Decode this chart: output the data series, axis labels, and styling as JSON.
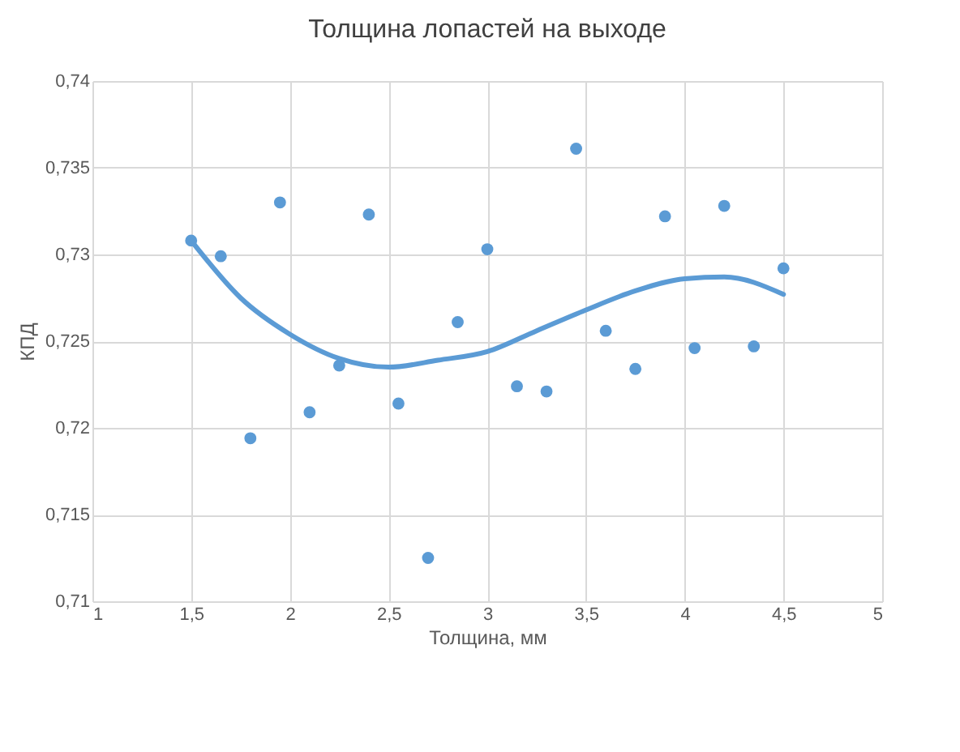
{
  "chart_data": {
    "type": "scatter",
    "title": "Толщина лопастей на выходе",
    "xlabel": "Толщина, мм",
    "ylabel": "КПД",
    "xlim": [
      1,
      5
    ],
    "ylim": [
      0.71,
      0.74
    ],
    "xticks": [
      1,
      {
        "value": 1.5,
        "label": "1,5"
      },
      2,
      {
        "value": 2.5,
        "label": "2,5"
      },
      3,
      {
        "value": 3.5,
        "label": "3,5"
      },
      4,
      {
        "value": 4.5,
        "label": "4,5"
      },
      5
    ],
    "yticks": [
      {
        "value": 0.71,
        "label": "0,71"
      },
      {
        "value": 0.715,
        "label": "0,715"
      },
      {
        "value": 0.72,
        "label": "0,72"
      },
      {
        "value": 0.725,
        "label": "0,725"
      },
      {
        "value": 0.73,
        "label": "0,73"
      },
      {
        "value": 0.735,
        "label": "0,735"
      },
      {
        "value": 0.74,
        "label": "0,74"
      }
    ],
    "grid": true,
    "series": [
      {
        "marker": "circle",
        "color": "#5b9bd5",
        "x": [
          1.5,
          1.65,
          1.8,
          1.95,
          2.1,
          2.25,
          2.4,
          2.55,
          2.7,
          2.85,
          3.0,
          3.15,
          3.3,
          3.45,
          3.6,
          3.75,
          3.9,
          4.05,
          4.2,
          4.35,
          4.5
        ],
        "values": [
          0.7308,
          0.7299,
          0.7194,
          0.733,
          0.7209,
          0.7236,
          0.7323,
          0.7214,
          0.7125,
          0.7261,
          0.7303,
          0.7224,
          0.7221,
          0.7361,
          0.7256,
          0.7234,
          0.7322,
          0.7246,
          0.7328,
          0.7247,
          0.7292
        ]
      },
      {
        "type": "line",
        "marker": "none",
        "color": "#5b9bd5",
        "x": [
          1.5,
          1.75,
          2.0,
          2.25,
          2.5,
          2.75,
          3.0,
          3.25,
          3.5,
          3.75,
          4.0,
          4.2,
          4.5
        ],
        "values": [
          0.7308,
          0.7275,
          0.7254,
          0.724,
          0.7235,
          0.7239,
          0.7244,
          0.7256,
          0.7268,
          0.7279,
          0.7286,
          0.7287,
          0.7277
        ]
      }
    ]
  }
}
